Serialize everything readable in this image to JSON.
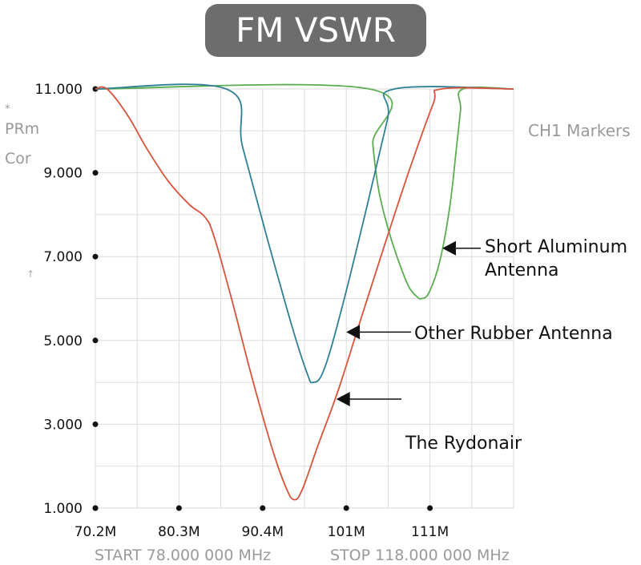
{
  "chart_data": {
    "type": "line",
    "title": "FM VSWR",
    "side_labels": [
      "*",
      "PRm",
      "Cor",
      "↑"
    ],
    "markers_label": "CH1 Markers",
    "start_label": "START 78.000 000 MHz",
    "stop_label": "STOP 118.000 000 MHz",
    "x_tick_labels": [
      "70.2M",
      "80.3M",
      "90.4M",
      "101M",
      "111M"
    ],
    "x_tick_values": [
      70.2,
      80.3,
      90.4,
      100.5,
      110.6
    ],
    "y_tick_labels": [
      "1.000",
      "3.000",
      "5.000",
      "7.000",
      "9.000",
      "11.000"
    ],
    "y_tick_values": [
      1,
      3,
      5,
      7,
      9,
      11
    ],
    "xlim": [
      70.2,
      120.7
    ],
    "ylim": [
      1,
      11
    ],
    "grid": true,
    "series": [
      {
        "name": "The Rydonair",
        "color": "#d9533a",
        "points": [
          [
            70.2,
            11.0
          ],
          [
            71.6,
            11.0
          ],
          [
            74.0,
            10.4
          ],
          [
            76.5,
            9.55
          ],
          [
            79.0,
            8.8
          ],
          [
            81.5,
            8.25
          ],
          [
            83.4,
            7.95
          ],
          [
            84.5,
            7.5
          ],
          [
            86.5,
            6.1
          ],
          [
            89.0,
            4.2
          ],
          [
            91.5,
            2.45
          ],
          [
            93.2,
            1.5
          ],
          [
            94.2,
            1.2
          ],
          [
            95.2,
            1.45
          ],
          [
            97.0,
            2.45
          ],
          [
            99.5,
            3.8
          ],
          [
            102.0,
            5.35
          ],
          [
            105.0,
            7.2
          ],
          [
            108.0,
            9.0
          ],
          [
            111.0,
            10.65
          ],
          [
            112.0,
            11.0
          ],
          [
            120.7,
            11.0
          ]
        ]
      },
      {
        "name": "Other Rubber Antenna",
        "color": "#2f7f96",
        "points": [
          [
            70.2,
            11.0
          ],
          [
            86.0,
            11.0
          ],
          [
            88.0,
            9.6
          ],
          [
            91.0,
            7.4
          ],
          [
            94.0,
            5.3
          ],
          [
            95.8,
            4.2
          ],
          [
            96.5,
            4.0
          ],
          [
            97.8,
            4.3
          ],
          [
            100.0,
            5.8
          ],
          [
            103.0,
            8.2
          ],
          [
            105.5,
            10.3
          ],
          [
            106.3,
            11.0
          ],
          [
            120.7,
            11.0
          ]
        ]
      },
      {
        "name": "Short Aluminum Antenna",
        "color": "#5aae4f",
        "points": [
          [
            70.2,
            11.0
          ],
          [
            103.3,
            11.0
          ],
          [
            103.7,
            9.7
          ],
          [
            104.4,
            8.6
          ],
          [
            105.5,
            7.7
          ],
          [
            106.8,
            6.9
          ],
          [
            108.0,
            6.3
          ],
          [
            109.0,
            6.05
          ],
          [
            109.6,
            6.0
          ],
          [
            110.5,
            6.15
          ],
          [
            111.8,
            6.9
          ],
          [
            113.0,
            8.2
          ],
          [
            113.8,
            9.6
          ],
          [
            114.3,
            10.5
          ],
          [
            114.6,
            11.0
          ],
          [
            120.7,
            11.0
          ]
        ]
      }
    ],
    "annotations": [
      {
        "text_lines": [
          "Short Aluminum",
          "Antenna"
        ],
        "target": [
          111.8,
          7.2
        ],
        "series": "Short Aluminum Antenna"
      },
      {
        "text_lines": [
          "Other Rubber Antenna"
        ],
        "target": [
          100.2,
          5.2
        ],
        "series": "Other Rubber Antenna"
      },
      {
        "text_lines": [
          "The Rydonair"
        ],
        "target": [
          99.0,
          3.6
        ],
        "series": "The Rydonair"
      }
    ]
  }
}
